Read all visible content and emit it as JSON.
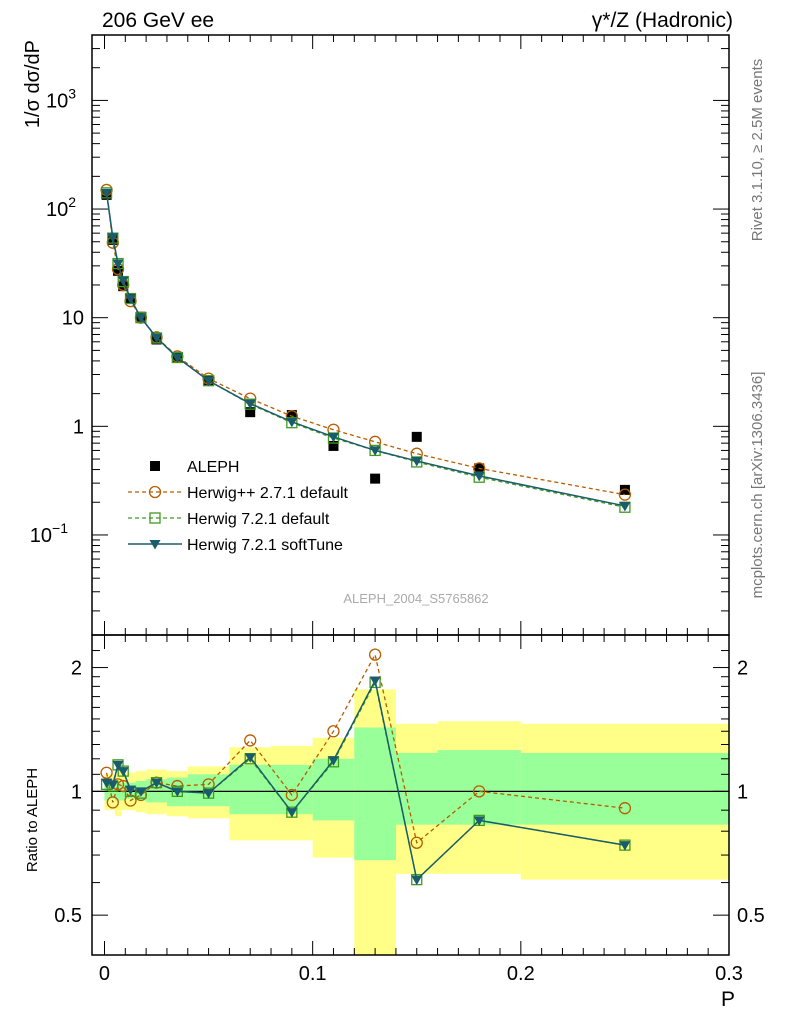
{
  "header": {
    "left_label": "206 GeV ee",
    "right_label": "γ*/Z (Hadronic)"
  },
  "side_labels": {
    "rivet": "Rivet 3.1.10, ≥ 2.5M events",
    "mcplots": "mcplots.cern.ch [arXiv:1306.3436]"
  },
  "watermark": "ALEPH_2004_S5765862",
  "chart_data": [
    {
      "type": "scatter",
      "panel": "main",
      "ylabel": "1/σ  dσ/dP",
      "yscale": "log",
      "ylim": [
        0.012,
        4000
      ],
      "xlim": [
        -0.006,
        0.3
      ],
      "yticks": [
        {
          "value": 1000,
          "label": "10",
          "sup": "3"
        },
        {
          "value": 100,
          "label": "10",
          "sup": "2"
        },
        {
          "value": 10,
          "label": "10",
          "sup": ""
        },
        {
          "value": 1,
          "label": "1",
          "sup": ""
        },
        {
          "value": 0.1,
          "label": "10",
          "sup": "−1"
        }
      ],
      "legend_position": "lower-left",
      "series": [
        {
          "name": "ALEPH",
          "color": "#000000",
          "marker": "filled-square",
          "line": "none",
          "x": [
            0.001,
            0.004,
            0.0065,
            0.009,
            0.0125,
            0.0175,
            0.025,
            0.035,
            0.05,
            0.07,
            0.09,
            0.11,
            0.13,
            0.15,
            0.18,
            0.25
          ],
          "y": [
            135,
            52,
            27,
            19.5,
            15,
            10.2,
            6.3,
            4.3,
            2.65,
            1.35,
            1.27,
            0.66,
            0.33,
            0.8,
            0.41,
            0.26
          ]
        },
        {
          "name": "Herwig++ 2.7.1 default",
          "color": "#b85c00",
          "marker": "open-circle",
          "line": "dashed",
          "x": [
            0.001,
            0.004,
            0.0065,
            0.009,
            0.0125,
            0.0175,
            0.025,
            0.035,
            0.05,
            0.07,
            0.09,
            0.11,
            0.13,
            0.15,
            0.18,
            0.25
          ],
          "y": [
            150,
            49,
            28,
            20,
            14.2,
            10,
            6.6,
            4.4,
            2.75,
            1.8,
            1.24,
            0.93,
            0.72,
            0.56,
            0.41,
            0.235
          ]
        },
        {
          "name": "Herwig 7.2.1 default",
          "color": "#3d9b1e",
          "marker": "open-square",
          "line": "dashed",
          "x": [
            0.001,
            0.004,
            0.0065,
            0.009,
            0.0125,
            0.0175,
            0.025,
            0.035,
            0.05,
            0.07,
            0.09,
            0.11,
            0.13,
            0.15,
            0.18,
            0.25
          ],
          "y": [
            141,
            54,
            31.5,
            21.5,
            15,
            10,
            6.5,
            4.3,
            2.63,
            1.6,
            1.08,
            0.78,
            0.6,
            0.47,
            0.34,
            0.18
          ]
        },
        {
          "name": "Herwig 7.2.1 softTune",
          "color": "#1a5c6b",
          "marker": "filled-triangle-down",
          "line": "solid",
          "x": [
            0.001,
            0.004,
            0.0065,
            0.009,
            0.0125,
            0.0175,
            0.025,
            0.035,
            0.05,
            0.07,
            0.09,
            0.11,
            0.13,
            0.15,
            0.18,
            0.25
          ],
          "y": [
            141,
            55,
            31.5,
            22,
            15,
            10,
            6.55,
            4.3,
            2.63,
            1.62,
            1.1,
            0.8,
            0.6,
            0.48,
            0.35,
            0.185
          ]
        }
      ]
    },
    {
      "type": "line",
      "panel": "ratio",
      "ylabel": "Ratio to ALEPH",
      "xlabel": "P",
      "yscale": "log",
      "ylim": [
        0.4,
        2.4
      ],
      "xlim": [
        -0.006,
        0.3
      ],
      "xticks": [
        0,
        0.1,
        0.2,
        0.3
      ],
      "xtick_labels": [
        "0",
        "0.1",
        "0.2",
        "0.3"
      ],
      "yticks": [
        0.5,
        1,
        2
      ],
      "ytick_labels": [
        "0.5",
        "1",
        "2"
      ],
      "reference_line": 1,
      "bands": {
        "stat_color": "#99ff99",
        "total_color": "#ffff88",
        "bins": [
          {
            "lo": 0.0,
            "hi": 0.002,
            "stat": [
              0.95,
              1.05
            ],
            "total": [
              0.9,
              1.1
            ]
          },
          {
            "lo": 0.002,
            "hi": 0.005,
            "stat": [
              0.96,
              1.04
            ],
            "total": [
              0.9,
              1.1
            ]
          },
          {
            "lo": 0.005,
            "hi": 0.008,
            "stat": [
              0.95,
              1.05
            ],
            "total": [
              0.87,
              1.13
            ]
          },
          {
            "lo": 0.008,
            "hi": 0.01,
            "stat": [
              0.95,
              1.05
            ],
            "total": [
              0.9,
              1.1
            ]
          },
          {
            "lo": 0.01,
            "hi": 0.015,
            "stat": [
              0.96,
              1.05
            ],
            "total": [
              0.9,
              1.11
            ]
          },
          {
            "lo": 0.015,
            "hi": 0.02,
            "stat": [
              0.95,
              1.06
            ],
            "total": [
              0.89,
              1.12
            ]
          },
          {
            "lo": 0.02,
            "hi": 0.03,
            "stat": [
              0.94,
              1.07
            ],
            "total": [
              0.88,
              1.13
            ]
          },
          {
            "lo": 0.03,
            "hi": 0.04,
            "stat": [
              0.92,
              1.08
            ],
            "total": [
              0.87,
              1.12
            ]
          },
          {
            "lo": 0.04,
            "hi": 0.06,
            "stat": [
              0.92,
              1.1
            ],
            "total": [
              0.86,
              1.15
            ]
          },
          {
            "lo": 0.06,
            "hi": 0.08,
            "stat": [
              0.88,
              1.16
            ],
            "total": [
              0.76,
              1.28
            ]
          },
          {
            "lo": 0.08,
            "hi": 0.1,
            "stat": [
              0.88,
              1.16
            ],
            "total": [
              0.76,
              1.29
            ]
          },
          {
            "lo": 0.1,
            "hi": 0.12,
            "stat": [
              0.85,
              1.2
            ],
            "total": [
              0.69,
              1.35
            ]
          },
          {
            "lo": 0.12,
            "hi": 0.14,
            "stat": [
              0.68,
              1.43
            ],
            "total": [
              0.4,
              1.77
            ]
          },
          {
            "lo": 0.14,
            "hi": 0.16,
            "stat": [
              0.83,
              1.24
            ],
            "total": [
              0.63,
              1.46
            ]
          },
          {
            "lo": 0.16,
            "hi": 0.2,
            "stat": [
              0.83,
              1.26
            ],
            "total": [
              0.63,
              1.48
            ]
          },
          {
            "lo": 0.2,
            "hi": 0.3,
            "stat": [
              0.83,
              1.24
            ],
            "total": [
              0.61,
              1.46
            ]
          }
        ]
      },
      "series": [
        {
          "name": "Herwig++ 2.7.1 default",
          "color": "#b85c00",
          "marker": "open-circle",
          "line": "dashed",
          "x": [
            0.001,
            0.004,
            0.0065,
            0.009,
            0.0125,
            0.0175,
            0.025,
            0.035,
            0.05,
            0.07,
            0.09,
            0.11,
            0.13,
            0.15,
            0.18,
            0.25
          ],
          "y": [
            1.11,
            0.94,
            1.04,
            1.03,
            0.95,
            0.98,
            1.05,
            1.03,
            1.04,
            1.33,
            0.98,
            1.4,
            2.15,
            0.75,
            1.0,
            0.91
          ]
        },
        {
          "name": "Herwig 7.2.1 default",
          "color": "#3d9b1e",
          "marker": "open-square",
          "line": "dashed",
          "x": [
            0.001,
            0.004,
            0.0065,
            0.009,
            0.0125,
            0.0175,
            0.025,
            0.035,
            0.05,
            0.07,
            0.09,
            0.11,
            0.13,
            0.15,
            0.18,
            0.25
          ],
          "y": [
            1.04,
            1.03,
            1.16,
            1.12,
            1.0,
            0.99,
            1.05,
            1.0,
            0.99,
            1.2,
            0.89,
            1.18,
            1.84,
            0.61,
            0.85,
            0.74
          ]
        },
        {
          "name": "Herwig 7.2.1 softTune",
          "color": "#1a5c6b",
          "marker": "filled-triangle-down",
          "line": "solid",
          "x": [
            0.001,
            0.004,
            0.0065,
            0.009,
            0.0125,
            0.0175,
            0.025,
            0.035,
            0.05,
            0.07,
            0.09,
            0.11,
            0.13,
            0.15,
            0.18,
            0.25
          ],
          "y": [
            1.05,
            1.04,
            1.16,
            1.12,
            1.01,
            1.0,
            1.05,
            1.0,
            0.99,
            1.21,
            0.89,
            1.19,
            1.86,
            0.61,
            0.85,
            0.74
          ]
        }
      ]
    }
  ]
}
